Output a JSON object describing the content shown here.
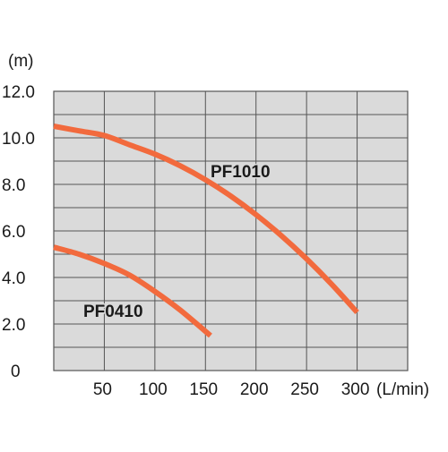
{
  "chart_data": {
    "type": "line",
    "title": "",
    "ylabel": "(m)",
    "xlabel": "(L/min)",
    "xlim": [
      0,
      350
    ],
    "ylim": [
      0,
      12
    ],
    "x_ticks": [
      "50",
      "100",
      "150",
      "200",
      "250",
      "300"
    ],
    "y_ticks": [
      "0",
      "2.0",
      "4.0",
      "6.0",
      "8.0",
      "10.0",
      "12.0"
    ],
    "grid": true,
    "plot_background": "#dadada",
    "grid_color": "#555555",
    "series": [
      {
        "name": "PF1010",
        "color": "#f26a3d",
        "x": [
          0,
          25,
          50,
          75,
          100,
          125,
          150,
          175,
          200,
          225,
          250,
          275,
          300
        ],
        "y": [
          10.5,
          10.3,
          10.1,
          9.7,
          9.3,
          8.8,
          8.2,
          7.5,
          6.7,
          5.8,
          4.8,
          3.7,
          2.5
        ]
      },
      {
        "name": "PF0410",
        "color": "#f26a3d",
        "x": [
          0,
          25,
          50,
          75,
          100,
          125,
          155
        ],
        "y": [
          5.3,
          5.0,
          4.6,
          4.1,
          3.4,
          2.6,
          1.5
        ]
      }
    ]
  }
}
